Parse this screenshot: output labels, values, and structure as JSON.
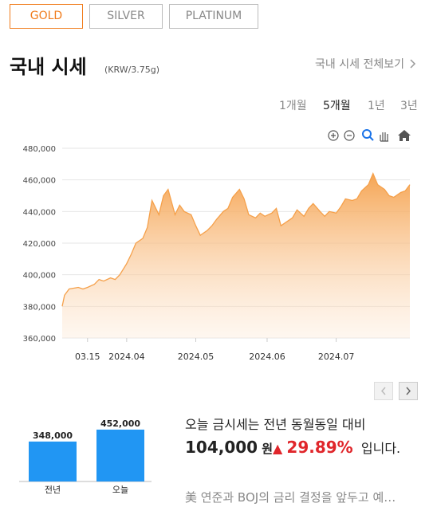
{
  "tabs": [
    "GOLD",
    "SILVER",
    "PLATINUM"
  ],
  "header": {
    "title": "국내 시세",
    "unit": "(KRW/3.75g)",
    "link": "국내 시세 전체보기"
  },
  "periods": [
    "1개월",
    "5개월",
    "1년",
    "3년"
  ],
  "chart_data": [
    {
      "type": "area",
      "color": "#f5a04a",
      "grid": true,
      "x": [
        "2024-03-04",
        "2024-03-05",
        "2024-03-07",
        "2024-03-11",
        "2024-03-13",
        "2024-03-15",
        "2024-03-18",
        "2024-03-20",
        "2024-03-22",
        "2024-03-25",
        "2024-03-27",
        "2024-03-29",
        "2024-04-01",
        "2024-04-03",
        "2024-04-05",
        "2024-04-08",
        "2024-04-10",
        "2024-04-12",
        "2024-04-15",
        "2024-04-17",
        "2024-04-19",
        "2024-04-22",
        "2024-04-24",
        "2024-04-26",
        "2024-04-29",
        "2024-05-01",
        "2024-05-03",
        "2024-05-06",
        "2024-05-08",
        "2024-05-10",
        "2024-05-13",
        "2024-05-15",
        "2024-05-17",
        "2024-05-20",
        "2024-05-22",
        "2024-05-24",
        "2024-05-27",
        "2024-05-29",
        "2024-05-31",
        "2024-06-03",
        "2024-06-05",
        "2024-06-07",
        "2024-06-10",
        "2024-06-12",
        "2024-06-14",
        "2024-06-17",
        "2024-06-19",
        "2024-06-21",
        "2024-06-24",
        "2024-06-26",
        "2024-06-28",
        "2024-07-01",
        "2024-07-03",
        "2024-07-05",
        "2024-07-08",
        "2024-07-10",
        "2024-07-12",
        "2024-07-15",
        "2024-07-17",
        "2024-07-19",
        "2024-07-22",
        "2024-07-24",
        "2024-07-26",
        "2024-07-29",
        "2024-07-31",
        "2024-08-02"
      ],
      "values": [
        380000,
        387000,
        391000,
        392000,
        391000,
        392000,
        394000,
        397000,
        396000,
        398000,
        397000,
        400000,
        407000,
        413000,
        420000,
        423000,
        430000,
        447000,
        438000,
        450000,
        454000,
        438000,
        444000,
        440000,
        438000,
        431000,
        425000,
        428000,
        431000,
        435000,
        440000,
        442000,
        449000,
        454000,
        448000,
        438000,
        436000,
        439000,
        437000,
        439000,
        442000,
        431000,
        434000,
        436000,
        441000,
        437000,
        442000,
        445000,
        440000,
        437000,
        440000,
        439000,
        443000,
        448000,
        447000,
        448000,
        453000,
        457000,
        464000,
        457000,
        454000,
        450000,
        449000,
        452000,
        453000,
        457000
      ],
      "xlim": [
        "2024-03-04",
        "2024-08-02"
      ],
      "xticks": [
        {
          "value": "2024-03-15",
          "label": "03.15"
        },
        {
          "value": "2024-04-01",
          "label": "2024.04"
        },
        {
          "value": "2024-05-01",
          "label": "2024.05"
        },
        {
          "value": "2024-06-01",
          "label": "2024.06"
        },
        {
          "value": "2024-07-01",
          "label": "2024.07"
        }
      ],
      "ylim": [
        360000,
        480000
      ],
      "yticks": [
        {
          "value": 360000,
          "label": "360,000"
        },
        {
          "value": 380000,
          "label": "380,000"
        },
        {
          "value": 400000,
          "label": "400,000"
        },
        {
          "value": 420000,
          "label": "420,000"
        },
        {
          "value": 440000,
          "label": "440,000"
        },
        {
          "value": 460000,
          "label": "460,000"
        },
        {
          "value": 480000,
          "label": "480,000"
        }
      ]
    },
    {
      "type": "bar",
      "color": "#2196f3",
      "categories": [
        "전년",
        "오늘"
      ],
      "values": [
        348000,
        452000
      ],
      "value_labels": [
        "348,000",
        "452,000"
      ],
      "ylim": [
        0,
        500000
      ]
    }
  ],
  "summary": {
    "line1": "오늘 금시세는 전년 동월동일 대비",
    "amount": "104,000",
    "won": "원",
    "arrow": "▲",
    "rate": "29.89%",
    "tail": "입니다."
  },
  "news": "美 연준과 BOJ의 금리 결정을 앞두고 예…"
}
